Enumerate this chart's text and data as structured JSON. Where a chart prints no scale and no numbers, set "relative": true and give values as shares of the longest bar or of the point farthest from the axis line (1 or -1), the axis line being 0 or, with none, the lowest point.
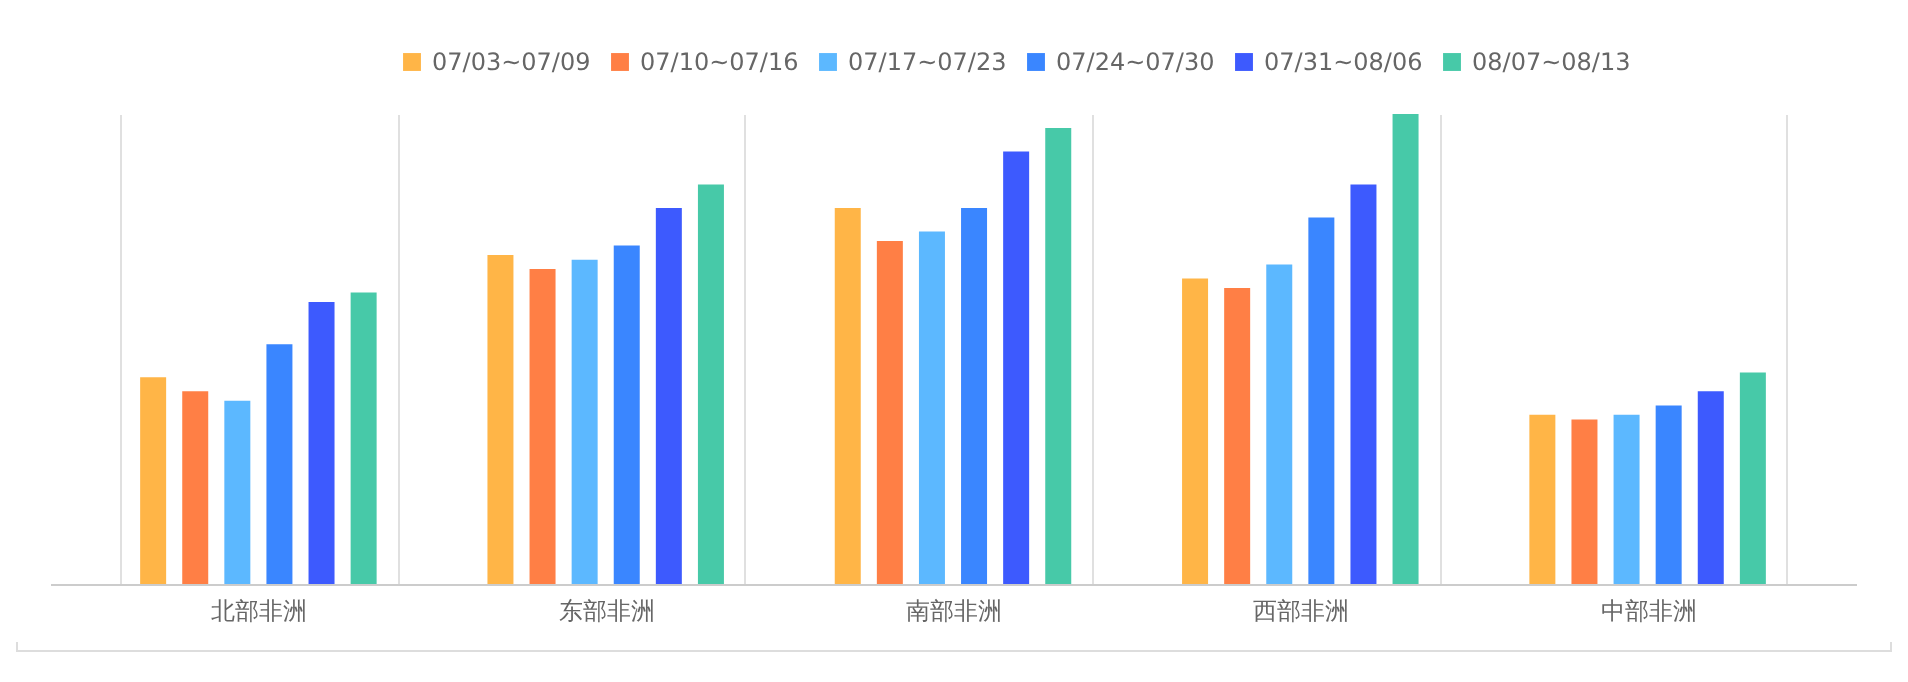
{
  "chart_data": {
    "type": "bar",
    "relative": true,
    "categories": [
      "北部非洲",
      "东部非洲",
      "南部非洲",
      "西部非洲",
      "中部非洲"
    ],
    "series": [
      {
        "name": "07/03~07/09",
        "color": "#ffb547",
        "values": [
          0.44,
          0.7,
          0.8,
          0.65,
          0.36
        ]
      },
      {
        "name": "07/10~07/16",
        "color": "#ff7f45",
        "values": [
          0.41,
          0.67,
          0.73,
          0.63,
          0.35
        ]
      },
      {
        "name": "07/17~07/23",
        "color": "#5cb8ff",
        "values": [
          0.39,
          0.69,
          0.75,
          0.68,
          0.36
        ]
      },
      {
        "name": "07/24~07/30",
        "color": "#3a86ff",
        "values": [
          0.51,
          0.72,
          0.8,
          0.78,
          0.38
        ]
      },
      {
        "name": "07/31~08/06",
        "color": "#3d5afe",
        "values": [
          0.6,
          0.8,
          0.92,
          0.85,
          0.41
        ]
      },
      {
        "name": "08/07~08/13",
        "color": "#47c9a8",
        "values": [
          0.62,
          0.85,
          0.97,
          1,
          0.45
        ]
      }
    ],
    "grid": "x",
    "legend": "top"
  }
}
